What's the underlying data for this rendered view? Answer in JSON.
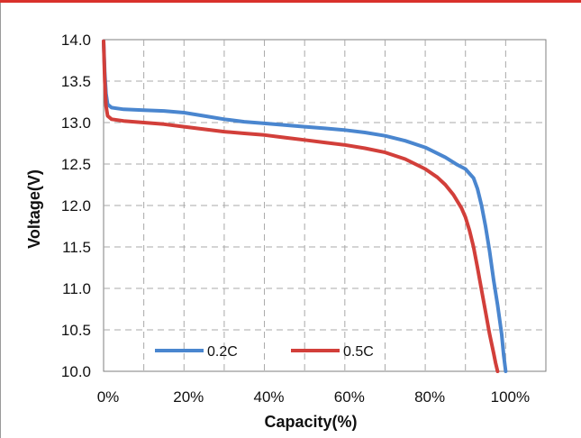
{
  "chart_data": {
    "type": "line",
    "title": "",
    "xlabel": "Capacity(%)",
    "ylabel": "Voltage(V)",
    "xlim": [
      0,
      110
    ],
    "ylim": [
      10.0,
      14.0
    ],
    "x_ticks": [
      0,
      20,
      40,
      60,
      80,
      100
    ],
    "x_tick_labels": [
      "0%",
      "20%",
      "40%",
      "60%",
      "80%",
      "100%"
    ],
    "y_ticks": [
      10.0,
      10.5,
      11.0,
      11.5,
      12.0,
      12.5,
      13.0,
      13.5,
      14.0
    ],
    "y_tick_labels": [
      "10.0",
      "10.5",
      "11.0",
      "11.5",
      "12.0",
      "12.5",
      "13.0",
      "13.5",
      "14.0"
    ],
    "grid": true,
    "legend": "bottom-left",
    "series": [
      {
        "name": "0.2C",
        "color": "#4a86cf",
        "x": [
          0,
          0.3,
          0.6,
          1,
          2,
          5,
          10,
          15,
          20,
          25,
          30,
          35,
          40,
          45,
          50,
          55,
          60,
          65,
          70,
          75,
          80,
          85,
          88,
          90,
          92,
          93,
          94,
          95,
          96,
          97,
          98,
          99,
          99.5,
          100
        ],
        "y": [
          13.98,
          13.6,
          13.35,
          13.22,
          13.18,
          13.16,
          13.15,
          13.14,
          13.12,
          13.08,
          13.04,
          13.01,
          12.99,
          12.97,
          12.95,
          12.93,
          12.91,
          12.88,
          12.84,
          12.78,
          12.7,
          12.58,
          12.49,
          12.44,
          12.33,
          12.2,
          12.0,
          11.75,
          11.45,
          11.1,
          10.8,
          10.45,
          10.2,
          10.0
        ]
      },
      {
        "name": "0.5C",
        "color": "#d23f3a",
        "x": [
          0,
          0.3,
          0.6,
          1,
          2,
          5,
          10,
          15,
          20,
          25,
          30,
          35,
          40,
          45,
          50,
          55,
          60,
          65,
          70,
          75,
          80,
          83,
          85,
          87,
          89,
          90,
          91,
          92,
          93,
          94,
          95,
          96,
          97,
          97.5,
          98
        ],
        "y": [
          13.98,
          13.5,
          13.2,
          13.08,
          13.04,
          13.02,
          13.0,
          12.98,
          12.95,
          12.92,
          12.89,
          12.87,
          12.85,
          12.82,
          12.79,
          12.76,
          12.73,
          12.69,
          12.64,
          12.56,
          12.44,
          12.34,
          12.25,
          12.13,
          11.97,
          11.86,
          11.7,
          11.5,
          11.25,
          10.98,
          10.72,
          10.45,
          10.22,
          10.1,
          10.0
        ]
      }
    ]
  }
}
